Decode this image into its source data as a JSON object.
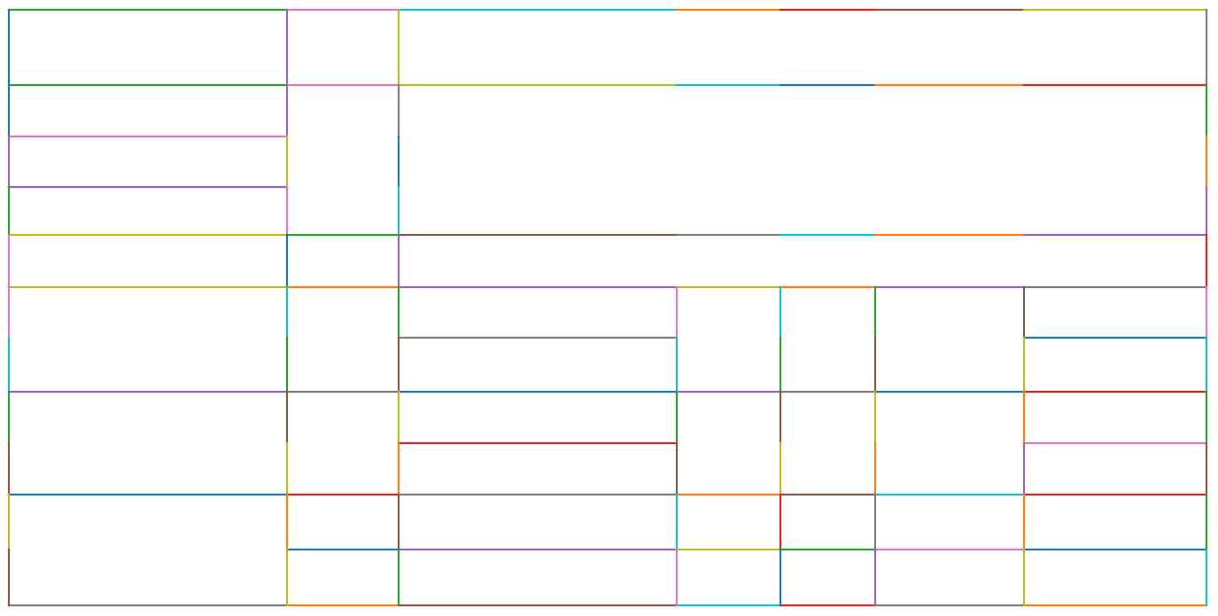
{
  "palette": {
    "blue": "#1f77b4",
    "orange": "#ff7f0e",
    "green": "#2ca02c",
    "red": "#d62728",
    "purple": "#9467bd",
    "brown": "#8c564b",
    "pink": "#e377c2",
    "gray": "#7f7f7f",
    "olive": "#bcbd22",
    "cyan": "#17becf"
  },
  "horizontal_edges": [
    [
      "green",
      "pink",
      "cyan",
      "orange",
      "red",
      "brown",
      "olive"
    ],
    [
      "green",
      "pink",
      "olive",
      "cyan",
      "blue",
      "orange",
      "red"
    ],
    [
      "pink"
    ],
    [
      "purple"
    ],
    [
      "olive",
      "green",
      "brown",
      "gray",
      "cyan",
      "orange",
      "purple"
    ],
    [
      "olive",
      "orange",
      "purple",
      "olive",
      "orange",
      "purple",
      "gray"
    ],
    [
      "gray",
      "blue"
    ],
    [
      "purple",
      "gray",
      "blue",
      "purple",
      "gray",
      "blue",
      "red"
    ],
    [
      "red",
      "pink"
    ],
    [
      "blue",
      "red",
      "gray",
      "orange",
      "brown",
      "cyan",
      "red"
    ],
    [
      "blue",
      "purple",
      "olive",
      "green",
      "pink",
      "blue"
    ],
    [
      "gray",
      "orange",
      "brown",
      "cyan",
      "red",
      "gray",
      "orange"
    ]
  ],
  "vertical_edges": [
    [
      "blue",
      "blue",
      "purple",
      "green",
      "pink",
      "pink",
      "cyan",
      "green",
      "brown",
      "olive",
      "brown"
    ],
    [
      "purple",
      "purple",
      "olive",
      "pink",
      "blue",
      "cyan",
      "green",
      "brown",
      "olive",
      "orange",
      "olive"
    ],
    [
      "olive",
      "gray",
      "blue",
      "cyan",
      "purple",
      "green",
      "brown",
      "olive",
      "orange",
      "brown",
      "green"
    ],
    [
      "pink",
      "cyan",
      "green",
      "brown",
      "cyan",
      "pink"
    ],
    [
      "cyan",
      "green",
      "brown",
      "olive",
      "red",
      "blue"
    ],
    [
      "green",
      "brown",
      "olive",
      "orange",
      "gray",
      "purple"
    ],
    [
      "brown",
      "olive",
      "orange",
      "purple",
      "orange",
      "olive"
    ],
    [
      "gray",
      "green",
      "orange",
      "purple",
      "red",
      "pink",
      "cyan",
      "green",
      "brown",
      "green",
      "cyan"
    ]
  ]
}
